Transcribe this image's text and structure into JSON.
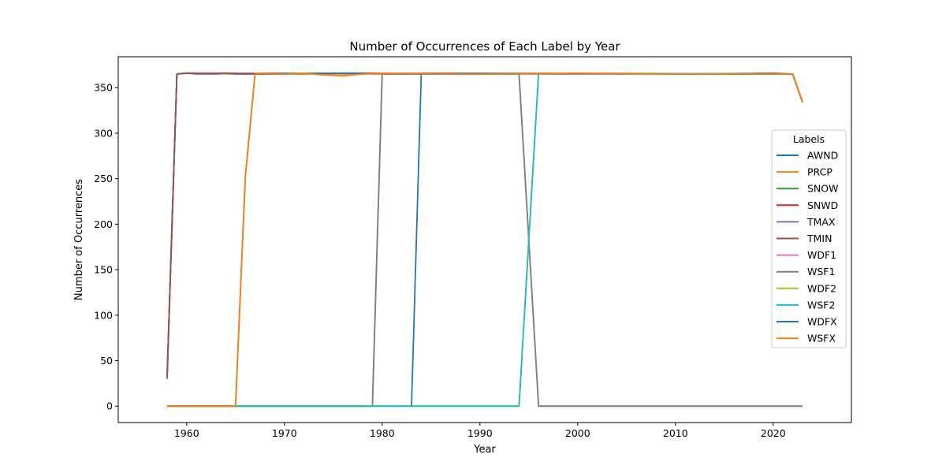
{
  "chart_data": {
    "type": "line",
    "title": "Number of Occurrences of Each Label by Year",
    "xlabel": "Year",
    "ylabel": "Number of Occurrences",
    "xlim": [
      1953,
      2028
    ],
    "ylim": [
      -18,
      384
    ],
    "xticks": [
      1960,
      1970,
      1980,
      1990,
      2000,
      2010,
      2020
    ],
    "yticks": [
      0,
      50,
      100,
      150,
      200,
      250,
      300,
      350
    ],
    "grid": false,
    "legend": {
      "title": "Labels",
      "placement": "right"
    },
    "series": [
      {
        "name": "AWND",
        "color": "#1f77b4",
        "x": [
          1958,
          1983,
          1984,
          2022,
          2023
        ],
        "y": [
          0,
          0,
          366,
          365,
          334
        ]
      },
      {
        "name": "PRCP",
        "color": "#ff7f0e",
        "x": [
          1958,
          1959,
          1960,
          1965,
          1966,
          1967,
          2022,
          2023
        ],
        "y": [
          33,
          365,
          366,
          365,
          365,
          365,
          365,
          334
        ]
      },
      {
        "name": "SNOW",
        "color": "#2ca02c",
        "x": [
          1958,
          1959,
          1960,
          2022,
          2023
        ],
        "y": [
          33,
          365,
          366,
          365,
          334
        ]
      },
      {
        "name": "SNWD",
        "color": "#d62728",
        "x": [
          1958,
          1959,
          1960,
          2022,
          2023
        ],
        "y": [
          33,
          365,
          366,
          365,
          334
        ]
      },
      {
        "name": "TMAX",
        "color": "#9467bd",
        "x": [
          1958,
          1959,
          1960,
          2022,
          2023
        ],
        "y": [
          33,
          365,
          366,
          365,
          334
        ]
      },
      {
        "name": "TMIN",
        "color": "#8c564b",
        "x": [
          1958,
          1959,
          1960,
          1961,
          1962,
          1963,
          1964,
          1965,
          1966,
          1967,
          1970,
          1975,
          1980,
          1990,
          2000,
          2010,
          2020,
          2022,
          2023
        ],
        "y": [
          30,
          365,
          366,
          365,
          365,
          365,
          366,
          365,
          365,
          365,
          365,
          366,
          366,
          365,
          366,
          365,
          366,
          365,
          334
        ]
      },
      {
        "name": "WDF1",
        "color": "#e377c2",
        "x": [
          1958,
          1979,
          1980,
          1994,
          1996,
          2023
        ],
        "y": [
          0,
          0,
          365,
          365,
          0,
          0
        ]
      },
      {
        "name": "WSF1",
        "color": "#7f7f7f",
        "x": [
          1958,
          1979,
          1980,
          1994,
          1996,
          2023
        ],
        "y": [
          0,
          0,
          365,
          365,
          0,
          0
        ]
      },
      {
        "name": "WDF2",
        "color": "#bcbd22",
        "x": [
          1958,
          1994,
          1996,
          2022,
          2023
        ],
        "y": [
          0,
          0,
          366,
          365,
          334
        ]
      },
      {
        "name": "WSF2",
        "color": "#17becf",
        "x": [
          1958,
          1994,
          1996,
          2022,
          2023
        ],
        "y": [
          0,
          0,
          366,
          365,
          334
        ]
      },
      {
        "name": "WDFX",
        "color": "#1f77b4",
        "x": [
          1958,
          1965,
          1966,
          1967,
          2022,
          2023
        ],
        "y": [
          0,
          0,
          252,
          366,
          365,
          334
        ]
      },
      {
        "name": "WSFX",
        "color": "#ff7f0e",
        "x": [
          1958,
          1965,
          1966,
          1967,
          1970,
          1972,
          1974,
          1976,
          1978,
          1980,
          1990,
          2000,
          2010,
          2022,
          2023
        ],
        "y": [
          0,
          0,
          252,
          366,
          365,
          366,
          364,
          363,
          365,
          366,
          365,
          366,
          365,
          365,
          334
        ]
      }
    ]
  }
}
